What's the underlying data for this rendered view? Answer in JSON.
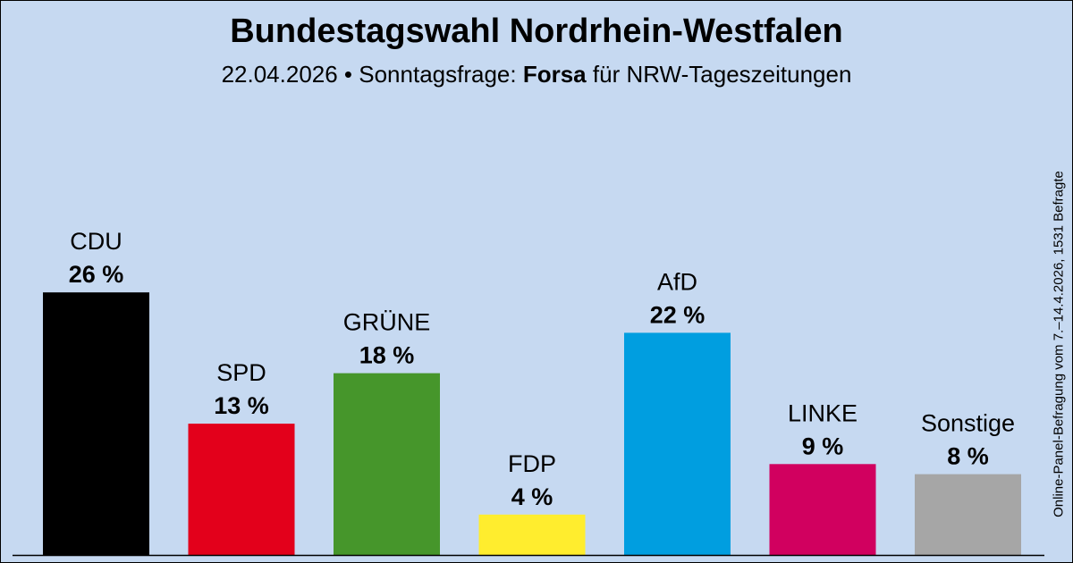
{
  "header": {
    "title": "Bundestagswahl Nordrhein-Westfalen",
    "subtitle_date": "22.04.2026 • Sonntagsfrage:",
    "subtitle_institute": "Forsa",
    "subtitle_client": "für NRW-Tageszeitungen"
  },
  "side_note": "Online-Panel-Befragung vom 7.–14.4.2026, 1531 Befragte",
  "chart_data": {
    "type": "bar",
    "title": "Bundestagswahl Nordrhein-Westfalen",
    "categories": [
      "CDU",
      "SPD",
      "GRÜNE",
      "FDP",
      "AfD",
      "LINKE",
      "Sonstige"
    ],
    "values": [
      26,
      13,
      18,
      4,
      22,
      9,
      8
    ],
    "value_labels": [
      "26 %",
      "13 %",
      "18 %",
      "4 %",
      "22 %",
      "9 %",
      "8 %"
    ],
    "colors": [
      "#000000",
      "#e3001b",
      "#46962b",
      "#ffed2e",
      "#009ee0",
      "#d1005f",
      "#a6a6a6"
    ],
    "xlabel": "",
    "ylabel": "",
    "ylim": [
      0,
      30
    ],
    "grid": false,
    "legend": "none"
  }
}
